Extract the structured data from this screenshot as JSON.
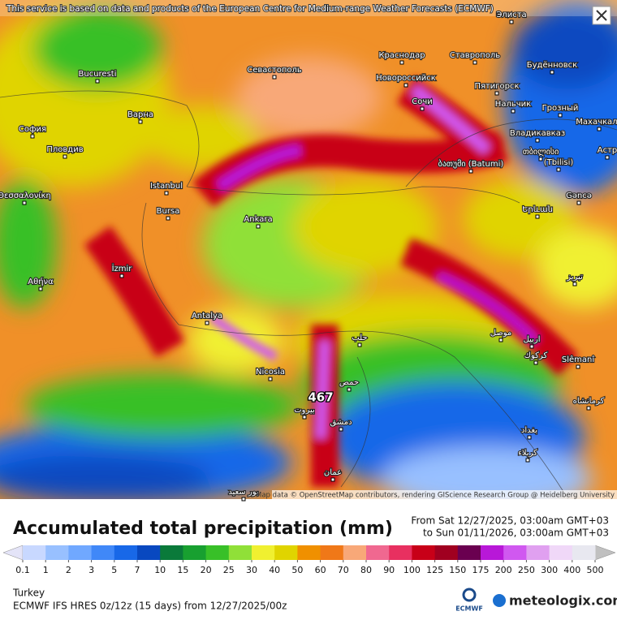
{
  "banner": "This service is based on data and products of the European Centre for Medium-range Weather Forecasts (ECMWF)",
  "attribution": "Map data © OpenStreetMap contributors, rendering GIScience Research Group @ Heidelberg University",
  "map_labels": [
    "Элиста",
    "Bucuresti",
    "Севастополь",
    "Краснодар",
    "Ставрополь",
    "Будённовск",
    "Новороссийск",
    "Пятигорск",
    "Варна",
    "София",
    "Сочи",
    "Нальчик",
    "Грозный",
    "Махачкала",
    "Пловдив",
    "Владикавказ",
    "თბილისი",
    "ბათუმი (Batumi)",
    "(Tbilisi)",
    "Istanbul",
    "Θεσσαλονίκη",
    "Gəncə",
    "Bursa",
    "Ankara",
    "Երևան",
    "İzmir",
    "Αθήνα",
    "تبريز",
    "Antalya",
    "حلب",
    "موصل",
    "اربيل",
    "Nicosia",
    "Slêmanî",
    "حمص",
    "كركوك",
    "بيروت",
    "دمشق",
    "كرمانشاه",
    "بغداد",
    "كربلاء",
    "عمان",
    "بور سعيد",
    "Астр"
  ],
  "max_label": "467",
  "title": "Accumulated total precipitation (mm)",
  "valid_from": "From Sat 12/27/2025, 03:00am GMT+03",
  "valid_to": "to Sun 01/11/2026, 03:00am GMT+03",
  "legend": {
    "ticks": [
      0.1,
      1,
      2,
      3,
      5,
      7,
      10,
      15,
      20,
      25,
      30,
      40,
      50,
      60,
      70,
      80,
      90,
      100,
      125,
      150,
      175,
      200,
      250,
      300,
      400,
      500
    ],
    "colors": [
      "#c8d8ff",
      "#98c0ff",
      "#70a8ff",
      "#4088f8",
      "#1868e8",
      "#0848c0",
      "#0a7a3a",
      "#18a030",
      "#38c028",
      "#90e038",
      "#f0f030",
      "#e0d400",
      "#f09000",
      "#f07818",
      "#f8a878",
      "#f06890",
      "#e83060",
      "#c80018",
      "#a00020",
      "#6a0050",
      "#b818d8",
      "#d058f0",
      "#e0a0f0",
      "#f0d8f8",
      "#e8e8f0"
    ],
    "under_color": "#e4e4f8",
    "over_color": "#c0c0c0"
  },
  "region": "Turkey",
  "model": "ECMWF IFS HRES 0z/12z (15 days) from  12/27/2025/00z",
  "logo_ecmwf": "ECMWF",
  "logo_meteologix": "meteologix.com"
}
